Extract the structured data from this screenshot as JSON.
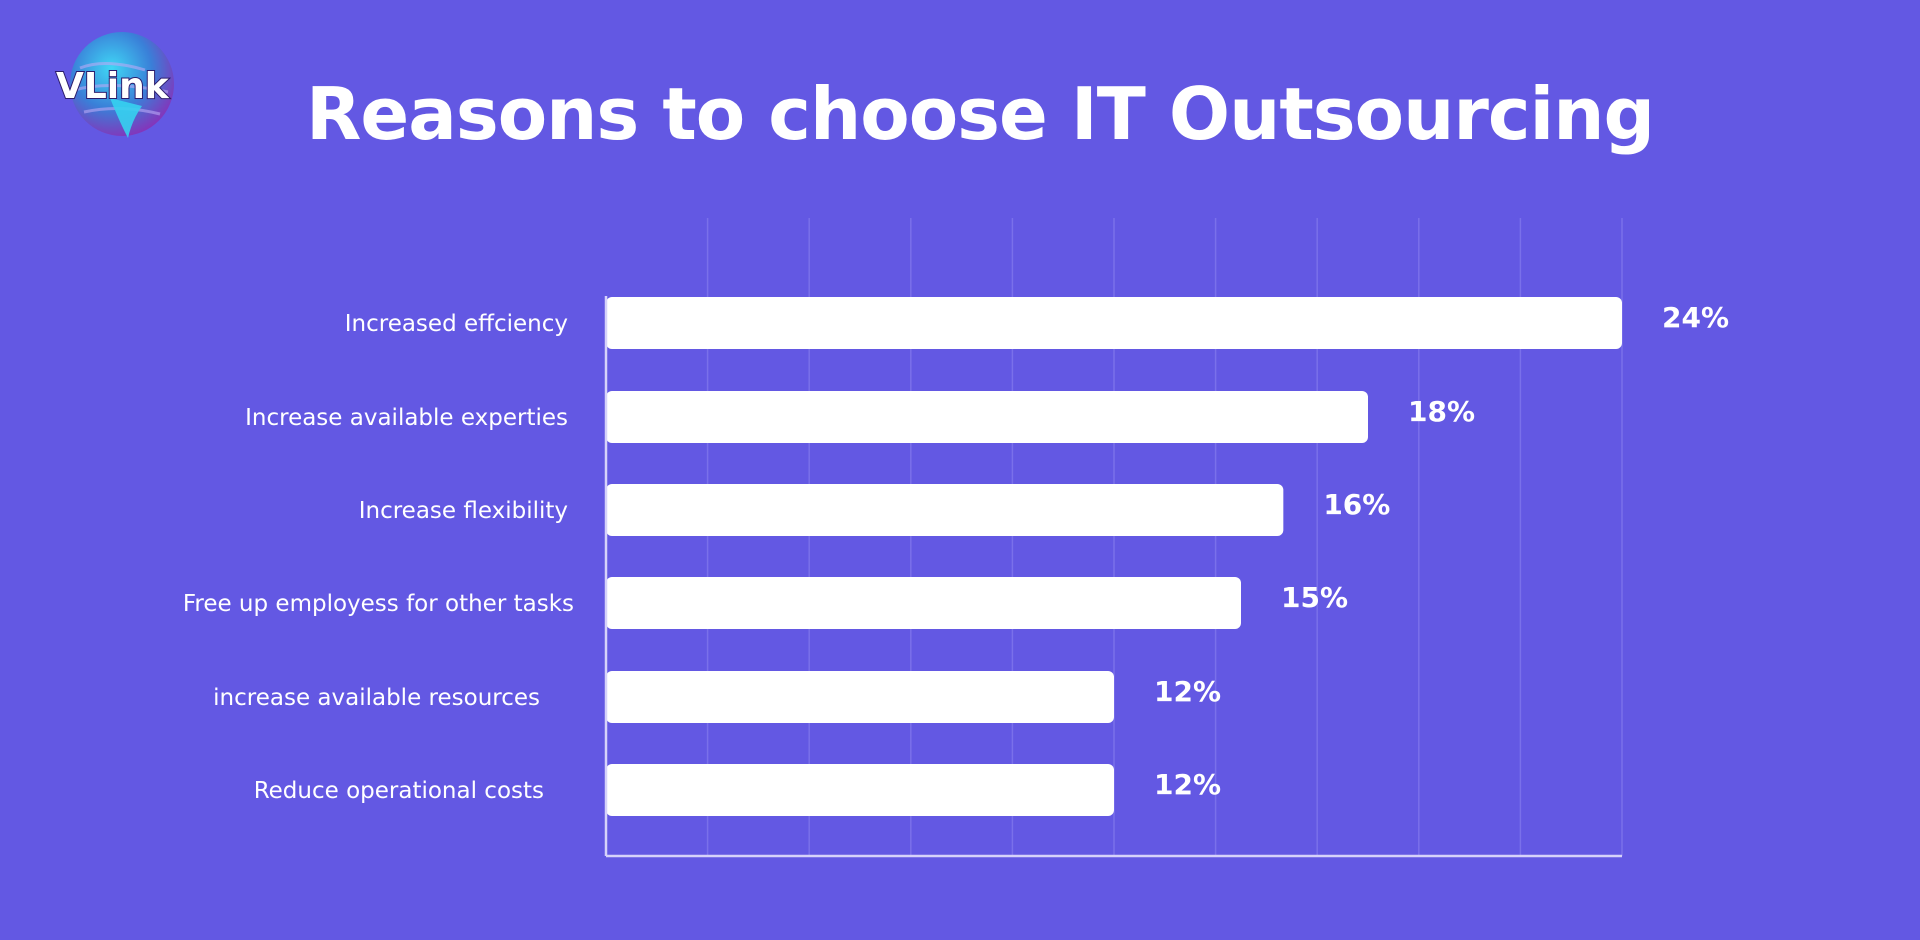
{
  "logo": {
    "text": "VLink"
  },
  "colors": {
    "background": "#6358e3",
    "bar": "#ffffff",
    "text": "#ffffff",
    "grid": "#7a70ea",
    "axis": "#d6d2fa"
  },
  "chart_data": {
    "type": "bar",
    "orientation": "horizontal",
    "title": "Reasons to choose IT Outsourcing",
    "categories": [
      "Increased effciency",
      "Increase available experties",
      "Increase flexibility",
      "Free up employess for other tasks",
      "increase available resources",
      "Reduce operational costs"
    ],
    "values": [
      24,
      18,
      16,
      15,
      12,
      12
    ],
    "value_labels": [
      "24%",
      "18%",
      "16%",
      "15%",
      "12%",
      "12%"
    ],
    "xlim": [
      0,
      24
    ],
    "grid": true,
    "legend": "none"
  }
}
